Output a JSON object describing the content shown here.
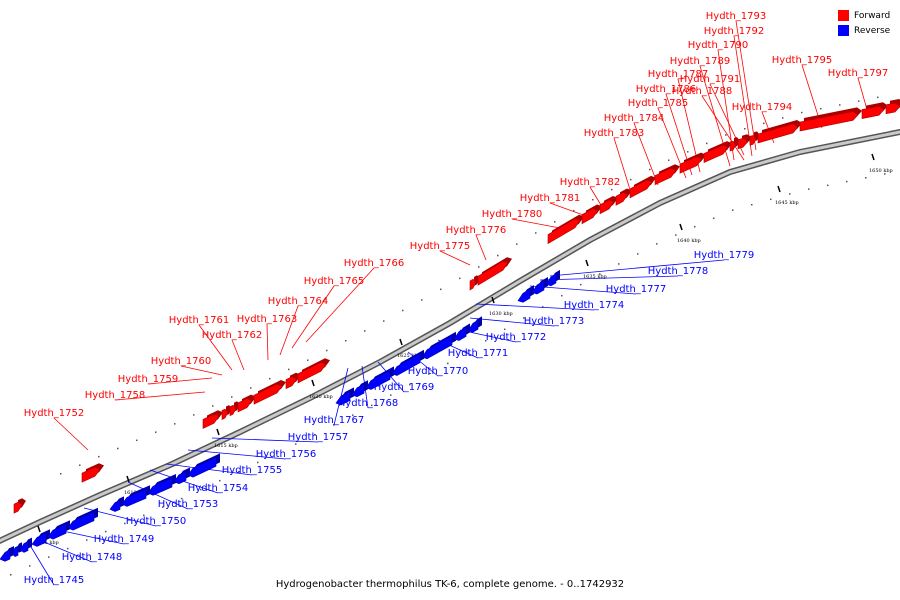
{
  "caption": "Hydrogenobacter thermophilus TK-6, complete genome. - 0..1742932",
  "legend": [
    {
      "label": "Forward",
      "color": "#ff0000"
    },
    {
      "label": "Reverse",
      "color": "#0000ff"
    }
  ],
  "colors": {
    "forward": "#ff0000",
    "reverse": "#0000ff",
    "backbone": "#888888"
  },
  "ticks": [
    "1605 kbp",
    "1610 kbp",
    "1615 kbp",
    "1620 kbp",
    "1625 kbp",
    "1630 kbp",
    "1635 kbp",
    "1640 kbp",
    "1645 kbp",
    "1650 kbp"
  ],
  "forward_genes": [
    "Hydth_1752",
    "Hydth_1758",
    "Hydth_1759",
    "Hydth_1760",
    "Hydth_1761",
    "Hydth_1762",
    "Hydth_1763",
    "Hydth_1764",
    "Hydth_1765",
    "Hydth_1766",
    "Hydth_1775",
    "Hydth_1776",
    "Hydth_1780",
    "Hydth_1781",
    "Hydth_1782",
    "Hydth_1783",
    "Hydth_1784",
    "Hydth_1785",
    "Hydth_1786",
    "Hydth_1787",
    "Hydth_1788",
    "Hydth_1789",
    "Hydth_1790",
    "Hydth_1791",
    "Hydth_1792",
    "Hydth_1793",
    "Hydth_1794",
    "Hydth_1795",
    "Hydth_1797"
  ],
  "reverse_genes": [
    "Hydth_1745",
    "Hydth_1748",
    "Hydth_1749",
    "Hydth_1750",
    "Hydth_1753",
    "Hydth_1754",
    "Hydth_1755",
    "Hydth_1756",
    "Hydth_1757",
    "Hydth_1767",
    "Hydth_1768",
    "Hydth_1769",
    "Hydth_1770",
    "Hydth_1771",
    "Hydth_1772",
    "Hydth_1773",
    "Hydth_1774",
    "Hydth_1777",
    "Hydth_1778",
    "Hydth_1779"
  ]
}
